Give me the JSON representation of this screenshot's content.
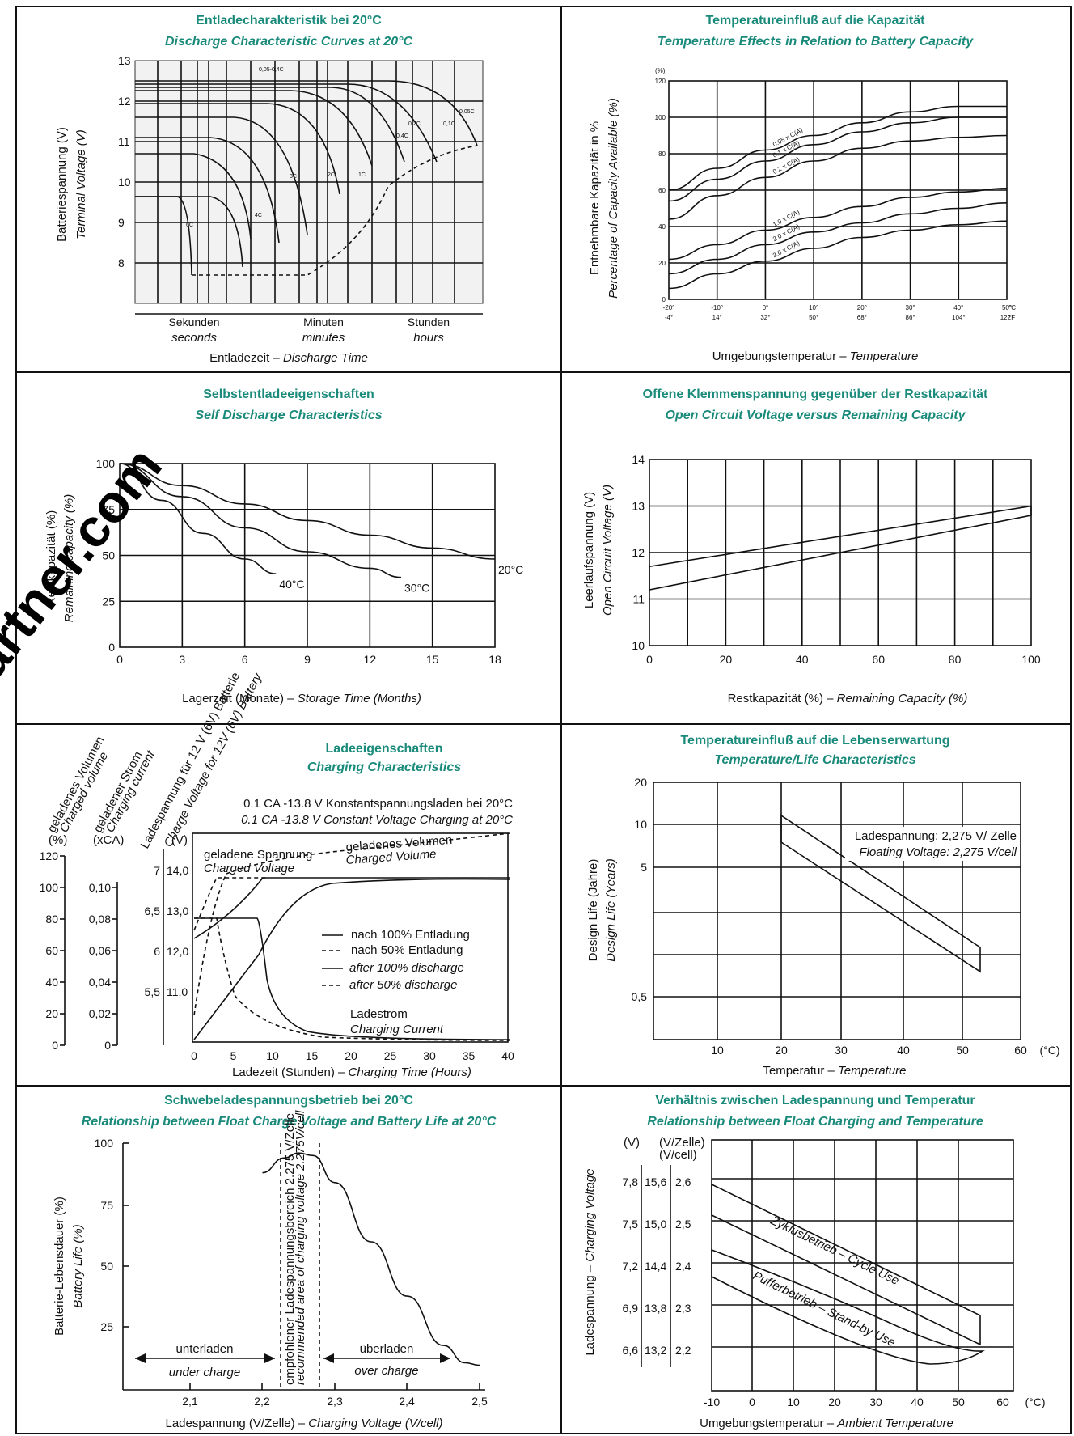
{
  "chart_data": [
    {
      "type": "line",
      "panel": "discharge",
      "title": "Entladecharakteristik bei 20°C",
      "subtitle": "Discharge Characteristic Curves at 20°C",
      "ylabel": "Batteriespannung (V)",
      "ylabel_en": "Terminal Voltage (V)",
      "xlabel": "Entladezeit – ",
      "xlabel_en": "Discharge Time",
      "y_ticks": [
        "13",
        "12",
        "11",
        "10",
        "9",
        "8"
      ],
      "x_groups": [
        "Sekunden",
        "Minuten",
        "Stunden"
      ],
      "x_groups_en": [
        "seconds",
        "minutes",
        "hours"
      ],
      "curve_labels": [
        "0,05-0,4C",
        "0,05C",
        "0,1C",
        "0,2C",
        "0,4C",
        "1C",
        "2C",
        "3C",
        "4C",
        "6C"
      ],
      "ylim": [
        7.5,
        13
      ]
    },
    {
      "type": "line",
      "panel": "temperature-capacity",
      "title": "Temperatureinfluß auf die Kapazität",
      "subtitle": "Temperature Effects in Relation to Battery Capacity",
      "ylabel": "Entnehmbare Kapazität in %",
      "ylabel_en": "Percentage of Capacity Available (%)",
      "xlabel": "Umgebungstemperatur – ",
      "xlabel_en": "Temperature",
      "y_unit": "(%)",
      "y_ticks": [
        "0",
        "20",
        "40",
        "60",
        "80",
        "100",
        "120"
      ],
      "x_ticks_c": [
        "-20°",
        "-10°",
        "0°",
        "10°",
        "20°",
        "30°",
        "40°",
        "50°"
      ],
      "x_ticks_f": [
        "-4°",
        "14°",
        "32°",
        "50°",
        "68°",
        "86°",
        "104°",
        "122°"
      ],
      "x_unit_c": "°C",
      "x_unit_f": "°F",
      "xlim": [
        -20,
        50
      ],
      "ylim": [
        0,
        120
      ],
      "series": [
        {
          "name": "0.05 x C(A)",
          "x": [
            -20,
            -10,
            0,
            10,
            20,
            30,
            40,
            50
          ],
          "values": [
            60,
            72,
            82,
            90,
            97,
            103,
            106,
            106
          ]
        },
        {
          "name": "0.1 x C(A)",
          "x": [
            -20,
            -10,
            0,
            10,
            20,
            30,
            40,
            50
          ],
          "values": [
            54,
            66,
            76,
            85,
            92,
            97,
            100,
            100
          ]
        },
        {
          "name": "0.2 x C(A)",
          "x": [
            -20,
            -10,
            0,
            10,
            20,
            30,
            40,
            50
          ],
          "values": [
            44,
            57,
            67,
            76,
            83,
            87,
            89,
            90
          ]
        },
        {
          "name": "1.0 x C(A)",
          "x": [
            -20,
            -10,
            0,
            10,
            20,
            30,
            40,
            50
          ],
          "values": [
            22,
            30,
            38,
            45,
            51,
            56,
            59,
            61
          ]
        },
        {
          "name": "2.0 x C(A)",
          "x": [
            -20,
            -10,
            0,
            10,
            20,
            30,
            40,
            50
          ],
          "values": [
            14,
            22,
            30,
            37,
            42,
            47,
            50,
            53
          ]
        },
        {
          "name": "3.0 x C(A)",
          "x": [
            -20,
            -10,
            0,
            10,
            20,
            30,
            40,
            50
          ],
          "values": [
            6,
            14,
            21,
            28,
            34,
            38,
            41,
            43
          ]
        }
      ]
    },
    {
      "type": "line",
      "panel": "self-discharge",
      "title": "Selbstentladeeigenschaften",
      "subtitle": "Self Discharge Characteristics",
      "ylabel": "Restkapazität (%)",
      "ylabel_en": "Remaining capacity (%)",
      "xlabel": "Lagerzeit (Monate) – ",
      "xlabel_en": "Storage Time (Months)",
      "xlim": [
        0,
        18
      ],
      "ylim": [
        0,
        100
      ],
      "x_ticks": [
        "0",
        "3",
        "6",
        "9",
        "12",
        "15",
        "18"
      ],
      "y_ticks": [
        "0",
        "25",
        "50",
        "75",
        "100"
      ],
      "series": [
        {
          "name": "20°C",
          "x": [
            0,
            3,
            6,
            9,
            12,
            15,
            18
          ],
          "values": [
            100,
            88,
            78,
            69,
            61,
            54,
            48
          ]
        },
        {
          "name": "30°C",
          "x": [
            0,
            3,
            6,
            9,
            12,
            13.5
          ],
          "values": [
            100,
            82,
            65,
            52,
            43,
            38
          ]
        },
        {
          "name": "40°C",
          "x": [
            0,
            2,
            4,
            6,
            7.5
          ],
          "values": [
            100,
            80,
            62,
            48,
            40
          ]
        }
      ]
    },
    {
      "type": "area",
      "panel": "open-circuit",
      "title": "Offene Klemmenspannung gegenüber der Restkapazität",
      "subtitle": "Open Circuit Voltage versus Remaining Capacity",
      "ylabel": "Leerlaufspannung (V)",
      "ylabel_en": "Open Circuit Voltage (V)",
      "xlabel": "Restkapazität (%) – ",
      "xlabel_en": "Remaining Capacity (%)",
      "xlim": [
        0,
        100
      ],
      "ylim": [
        10,
        14
      ],
      "x_ticks": [
        "0",
        "20",
        "40",
        "60",
        "80",
        "100"
      ],
      "y_ticks": [
        "10",
        "11",
        "12",
        "13",
        "14"
      ],
      "band": {
        "x": [
          0,
          100
        ],
        "upper": [
          11.7,
          13.0
        ],
        "lower": [
          11.2,
          12.8
        ]
      }
    },
    {
      "type": "line",
      "panel": "charging",
      "title": "Ladeeigenschaften",
      "subtitle": "Charging Characteristics",
      "condition": "0.1 CA -13.8 V Konstantspannungsladen bei 20°C",
      "condition_en": "0.1 CA -13.8 V Constant Voltage Charging at 20°C",
      "axis1_label": "geladenes Volumen",
      "axis1_label_en": "Charged volume",
      "axis1_unit": "(%)",
      "axis2_label": "geladener Strom",
      "axis2_label_en": "Charging current",
      "axis2_unit": "(xCA)",
      "axis3_label": "Ladespannung für 12 V (6V) Batterie",
      "axis3_label_en": "Charge Voltage for 12V (6V) Battery",
      "axis3_unit": "(V)",
      "axis1_ticks": [
        "0",
        "20",
        "40",
        "60",
        "80",
        "100",
        "120"
      ],
      "axis2_ticks": [
        "0",
        "0,02",
        "0,04",
        "0,06",
        "0,08",
        "0,10"
      ],
      "axis3_ticks_12v": [
        "11,0",
        "12,0",
        "13,0",
        "14,0"
      ],
      "axis3_ticks_6v": [
        "5,5",
        "6",
        "6,5",
        "7"
      ],
      "xlabel": "Ladezeit (Stunden) – ",
      "xlabel_en": "Charging Time (Hours)",
      "x_ticks": [
        "0",
        "5",
        "10",
        "15",
        "20",
        "25",
        "30",
        "35",
        "40"
      ],
      "xlim": [
        0,
        40
      ],
      "annotations": {
        "charged_voltage": "geladene Spannung",
        "charged_voltage_en": "Charged Voltage",
        "charged_volume": "geladenes Volumen",
        "charged_volume_en": "Charged Volume",
        "charging_current": "Ladestrom",
        "charging_current_en": "Charging Current"
      },
      "legend": [
        "nach 100% Entladung",
        "nach  50% Entladung",
        "after 100% discharge",
        "after 50% discharge"
      ]
    },
    {
      "type": "area",
      "panel": "temperature-life",
      "title": "Temperatureinfluß auf die Lebenserwartung",
      "subtitle": "Temperature/Life Characteristics",
      "ylabel": "Design Life (Jahre)",
      "ylabel_en": "Design Life (Years)",
      "xlabel": "Temperatur – ",
      "xlabel_en": "Temperature",
      "x_ticks": [
        "10",
        "20",
        "30",
        "40",
        "50",
        "60"
      ],
      "x_unit": "(°C)",
      "y_ticks": [
        "20",
        "10",
        "5",
        "0,5"
      ],
      "note": "Ladespannung: 2,275 V/ Zelle",
      "note_en": "Floating Voltage: 2,275 V/cell",
      "band": {
        "x": [
          20,
          52.5
        ],
        "upper": [
          12,
          1.1
        ],
        "lower": [
          7.5,
          0.7
        ]
      }
    },
    {
      "type": "line",
      "panel": "float-life",
      "title": "Schwebeladespannungsbetrieb bei 20°C",
      "subtitle": "Relationship between Float Charge Voltage and Battery Life at 20°C",
      "ylabel": "Batterie-Lebensdauer (%)",
      "ylabel_en": "Battery Life (%)",
      "xlabel": "Ladespannung (V/Zelle) – ",
      "xlabel_en": "Charging Voltage (V/cell)",
      "x_ticks": [
        "2,1",
        "2,2",
        "2,3",
        "2,4",
        "2,5"
      ],
      "y_ticks": [
        "25",
        "50",
        "75",
        "100"
      ],
      "xlim": [
        2.0,
        2.5
      ],
      "ylim": [
        0,
        100
      ],
      "series": [
        {
          "name": "",
          "x": [
            2.2,
            2.23,
            2.25,
            2.27,
            2.3,
            2.35,
            2.4,
            2.45,
            2.48,
            2.5
          ],
          "values": [
            88,
            94,
            96,
            95,
            84,
            60,
            38,
            18,
            11,
            10
          ]
        }
      ],
      "region_label": "empfohlener Ladespannungsbereich 2.275 V/Zelle",
      "region_label_en": "recommended area of charging voltage 2.275V/cell",
      "under": "unterladen",
      "under_en": "under charge",
      "over": "überladen",
      "over_en": "over charge"
    },
    {
      "type": "area",
      "panel": "float-temperature",
      "title": "Verhältnis zwischen Ladespannung und Temperatur",
      "subtitle": "Relationship between Float Charging and Temperature",
      "ylabel_en": "Charging Voltage",
      "ylabel": "Ladespannung – ",
      "unit_v": "(V)",
      "unit_cell": "(V/Zelle)",
      "unit_cell_en": "(V/cell)",
      "y_ticks_6v": [
        "6,6",
        "6,9",
        "7,2",
        "7,5",
        "7,8"
      ],
      "y_ticks_12v": [
        "13,2",
        "13,8",
        "14,4",
        "15,0",
        "15,6"
      ],
      "y_ticks_cell": [
        "2,2",
        "2,3",
        "2,4",
        "2,5",
        "2,6"
      ],
      "xlabel": "Umgebungstemperatur – ",
      "xlabel_en": "Ambient Temperature",
      "x_ticks": [
        "-10",
        "0",
        "10",
        "20",
        "30",
        "40",
        "50",
        "60"
      ],
      "x_unit": "(°C)",
      "xlim": [
        -10,
        60
      ],
      "bands": [
        {
          "name": "Zyklusbetrieb – Cycle Use",
          "x": [
            -10,
            55
          ],
          "upper": [
            2.61,
            2.28
          ],
          "lower": [
            2.54,
            2.21
          ]
        },
        {
          "name": "Pufferbetrieb – Stand-by Use",
          "x": [
            -10,
            55
          ],
          "upper": [
            2.45,
            2.17
          ],
          "lower": [
            2.39,
            2.13
          ]
        }
      ]
    }
  ],
  "watermark": "artner.com"
}
